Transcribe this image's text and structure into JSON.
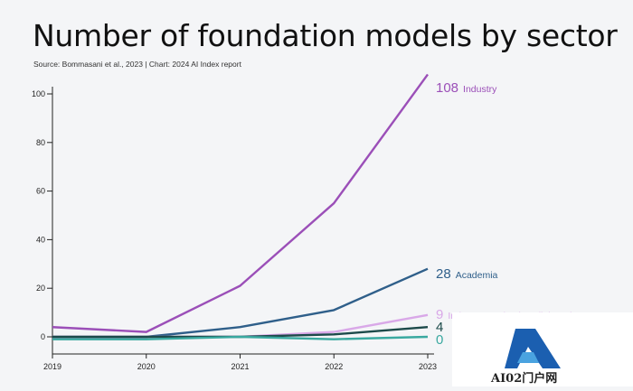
{
  "chart_data": {
    "type": "line",
    "title": "Number of foundation models by sector",
    "source": "Source: Bommasani et al., 2023 | Chart: 2024 AI Index report",
    "x": [
      2019,
      2020,
      2021,
      2022,
      2023
    ],
    "ylim": [
      0,
      100
    ],
    "yticks": [
      0,
      20,
      40,
      60,
      80,
      100
    ],
    "grid": false,
    "series": [
      {
        "name": "Industry",
        "values": [
          4,
          2,
          21,
          55,
          108
        ],
        "end_label": "108",
        "color": "#9b4fb8"
      },
      {
        "name": "Academia",
        "values": [
          0,
          0,
          4,
          11,
          28
        ],
        "end_label": "28",
        "color": "#2f5f8a"
      },
      {
        "name": "Industry-academia collaboration",
        "values": [
          0,
          0,
          0,
          2,
          9
        ],
        "end_label": "9",
        "color": "#d9a8e8"
      },
      {
        "name": "",
        "values": [
          0,
          0,
          0,
          1,
          4
        ],
        "end_label": "4",
        "color": "#1c4a4a"
      },
      {
        "name": "",
        "values": [
          -1,
          -1,
          0,
          -1,
          0
        ],
        "end_label": "0",
        "color": "#3aa9a0"
      }
    ]
  },
  "watermark": {
    "text": "AI02门户网"
  }
}
